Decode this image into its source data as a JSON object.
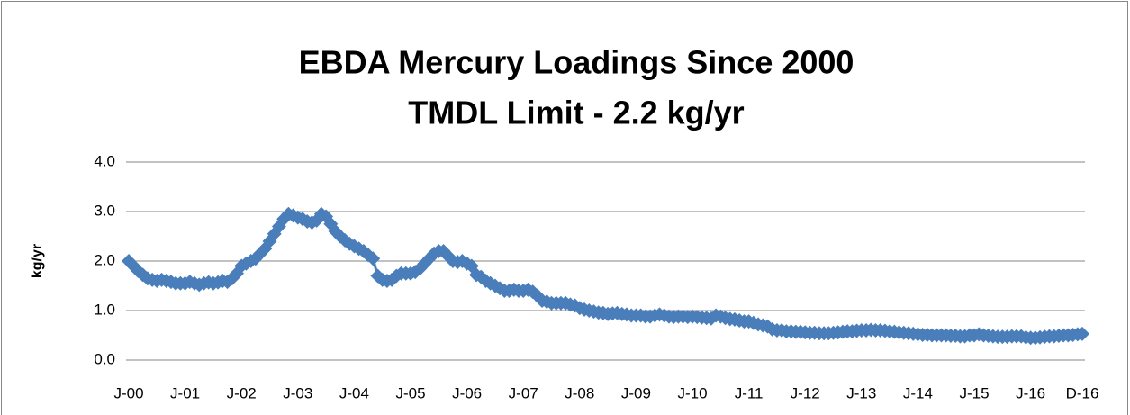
{
  "chart_data": {
    "type": "line",
    "title": "EBDA Mercury Loadings Since 2000",
    "subtitle": "TMDL Limit - 2.2 kg/yr",
    "y_label": "kg/yr",
    "categories": [
      "J-00",
      null,
      null,
      null,
      null,
      null,
      null,
      null,
      null,
      null,
      null,
      null,
      "J-01",
      null,
      null,
      null,
      null,
      null,
      null,
      null,
      null,
      null,
      null,
      null,
      "J-02",
      null,
      null,
      null,
      null,
      null,
      null,
      null,
      null,
      null,
      null,
      null,
      "J-03",
      null,
      null,
      null,
      null,
      null,
      null,
      null,
      null,
      null,
      null,
      null,
      "J-04",
      null,
      null,
      null,
      null,
      null,
      null,
      null,
      null,
      null,
      null,
      null,
      "J-05",
      null,
      null,
      null,
      null,
      null,
      null,
      null,
      null,
      null,
      null,
      null,
      "J-06",
      null,
      null,
      null,
      null,
      null,
      null,
      null,
      null,
      null,
      null,
      null,
      "J-07",
      null,
      null,
      null,
      null,
      null,
      null,
      null,
      null,
      null,
      null,
      null,
      "J-08",
      null,
      null,
      null,
      null,
      null,
      null,
      null,
      null,
      null,
      null,
      null,
      "J-09",
      null,
      null,
      null,
      null,
      null,
      null,
      null,
      null,
      null,
      null,
      null,
      "J-10",
      null,
      null,
      null,
      null,
      null,
      null,
      null,
      null,
      null,
      null,
      null,
      "J-11",
      null,
      null,
      null,
      null,
      null,
      null,
      null,
      null,
      null,
      null,
      null,
      "J-12",
      null,
      null,
      null,
      null,
      null,
      null,
      null,
      null,
      null,
      null,
      null,
      "J-13",
      null,
      null,
      null,
      null,
      null,
      null,
      null,
      null,
      null,
      null,
      null,
      "J-14",
      null,
      null,
      null,
      null,
      null,
      null,
      null,
      null,
      null,
      null,
      null,
      "J-15",
      null,
      null,
      null,
      null,
      null,
      null,
      null,
      null,
      null,
      null,
      null,
      "J-16",
      null,
      null,
      null,
      null,
      null,
      null,
      null,
      null,
      null,
      null,
      "D-16"
    ],
    "values": [
      2.0,
      1.9,
      1.8,
      1.72,
      1.65,
      1.62,
      1.6,
      1.62,
      1.6,
      1.58,
      1.55,
      1.55,
      1.55,
      1.58,
      1.55,
      1.52,
      1.55,
      1.57,
      1.55,
      1.57,
      1.6,
      1.58,
      1.65,
      1.75,
      1.9,
      1.95,
      2.0,
      2.05,
      2.15,
      2.25,
      2.4,
      2.55,
      2.7,
      2.85,
      2.95,
      2.92,
      2.88,
      2.85,
      2.8,
      2.78,
      2.82,
      2.95,
      2.9,
      2.75,
      2.6,
      2.5,
      2.42,
      2.35,
      2.3,
      2.25,
      2.2,
      2.12,
      2.05,
      1.7,
      1.62,
      1.6,
      1.62,
      1.7,
      1.75,
      1.75,
      1.75,
      1.78,
      1.85,
      1.95,
      2.05,
      2.15,
      2.2,
      2.2,
      2.1,
      2.0,
      1.98,
      2.0,
      1.95,
      1.9,
      1.72,
      1.68,
      1.6,
      1.55,
      1.5,
      1.45,
      1.4,
      1.4,
      1.42,
      1.4,
      1.4,
      1.42,
      1.38,
      1.3,
      1.2,
      1.18,
      1.15,
      1.15,
      1.15,
      1.15,
      1.12,
      1.1,
      1.05,
      1.02,
      1.0,
      0.98,
      0.96,
      0.95,
      0.93,
      0.94,
      0.95,
      0.93,
      0.92,
      0.9,
      0.9,
      0.9,
      0.88,
      0.88,
      0.9,
      0.92,
      0.9,
      0.88,
      0.87,
      0.88,
      0.88,
      0.87,
      0.88,
      0.87,
      0.86,
      0.85,
      0.84,
      0.9,
      0.88,
      0.85,
      0.83,
      0.82,
      0.8,
      0.78,
      0.78,
      0.75,
      0.72,
      0.7,
      0.68,
      0.62,
      0.6,
      0.6,
      0.58,
      0.58,
      0.57,
      0.57,
      0.56,
      0.55,
      0.55,
      0.54,
      0.54,
      0.54,
      0.55,
      0.56,
      0.57,
      0.58,
      0.58,
      0.59,
      0.6,
      0.6,
      0.61,
      0.6,
      0.6,
      0.59,
      0.58,
      0.57,
      0.56,
      0.55,
      0.54,
      0.53,
      0.52,
      0.51,
      0.51,
      0.5,
      0.5,
      0.5,
      0.5,
      0.49,
      0.49,
      0.48,
      0.48,
      0.5,
      0.5,
      0.52,
      0.5,
      0.49,
      0.48,
      0.47,
      0.47,
      0.47,
      0.48,
      0.48,
      0.48,
      0.46,
      0.45,
      0.45,
      0.46,
      0.47,
      0.48,
      0.48,
      0.49,
      0.5,
      0.5,
      0.51,
      0.52,
      0.53
    ],
    "color": "#4a7ebb",
    "ylim": [
      0,
      4
    ],
    "yticks": [
      {
        "value": 0,
        "label": "0.0"
      },
      {
        "value": 1,
        "label": "1.0"
      },
      {
        "value": 2,
        "label": "2.0"
      },
      {
        "value": 3,
        "label": "3.0"
      },
      {
        "value": 4,
        "label": "4.0"
      }
    ],
    "grid": true
  }
}
